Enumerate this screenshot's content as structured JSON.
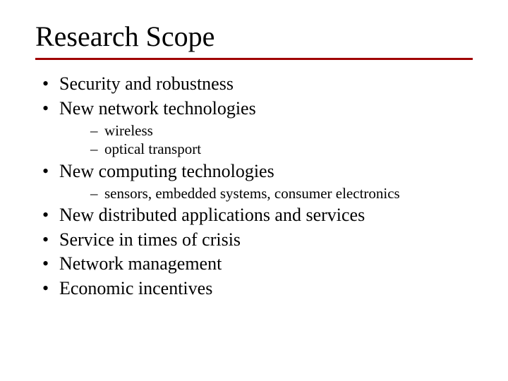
{
  "title": "Research Scope",
  "rule_color": "#a00000",
  "bullets": {
    "b1": "Security and robustness",
    "b2": "New network technologies",
    "b2_sub1": "wireless",
    "b2_sub2": "optical transport",
    "b3": "New computing technologies",
    "b3_sub1": "sensors, embedded systems, consumer electronics",
    "b4": "New distributed applications and services",
    "b5": "Service in times of crisis",
    "b6": "Network management",
    "b7": "Economic incentives"
  },
  "typography": {
    "title_fontsize": 40,
    "l1_fontsize": 26,
    "l2_fontsize": 21,
    "font_family": "Times New Roman",
    "text_color": "#000000",
    "background_color": "#ffffff"
  }
}
